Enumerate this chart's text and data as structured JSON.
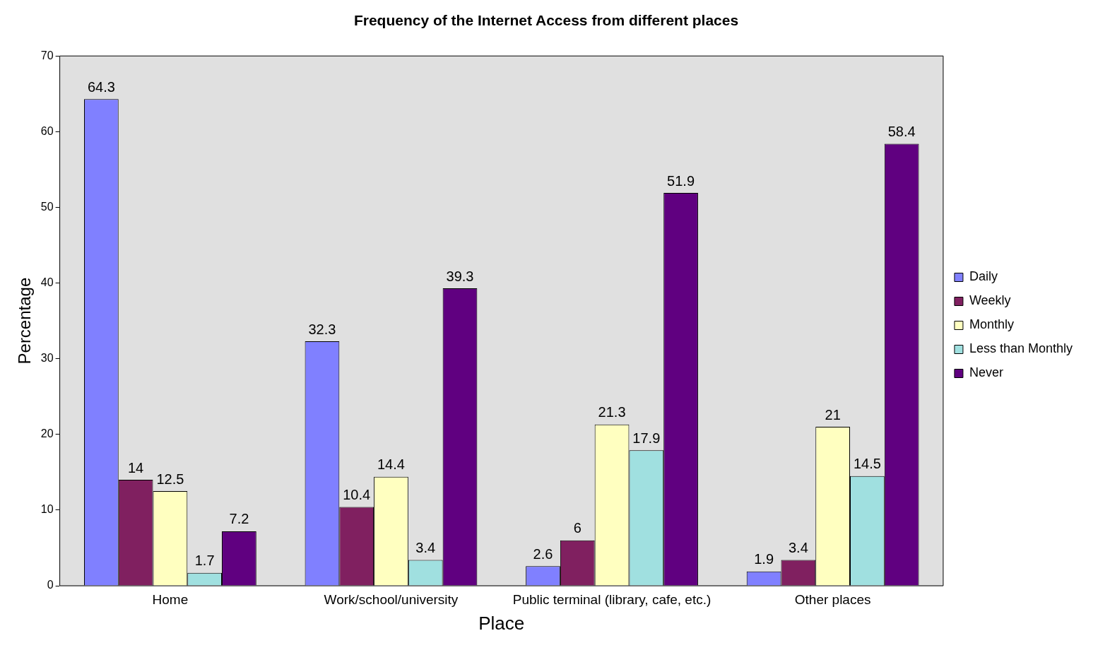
{
  "chart_data": {
    "type": "bar",
    "title": "Frequency of the Internet Access from different places",
    "xlabel": "Place",
    "ylabel": "Percentage",
    "categories": [
      "Home",
      "Work/school/university",
      "Public terminal (library, cafe, etc.)",
      "Other places"
    ],
    "series": [
      {
        "name": "Daily",
        "color": "#8080ff",
        "values": [
          64.3,
          32.3,
          2.6,
          1.9
        ]
      },
      {
        "name": "Weekly",
        "color": "#802060",
        "values": [
          14,
          10.4,
          6,
          3.4
        ]
      },
      {
        "name": "Monthly",
        "color": "#ffffc0",
        "values": [
          12.5,
          14.4,
          21.3,
          21
        ]
      },
      {
        "name": "Less than Monthly",
        "color": "#a0e0e0",
        "values": [
          1.7,
          3.4,
          17.9,
          14.5
        ]
      },
      {
        "name": "Never",
        "color": "#600080",
        "values": [
          7.2,
          39.3,
          51.9,
          58.4
        ]
      }
    ],
    "ylim": [
      0,
      70
    ],
    "yticks": [
      0,
      10,
      20,
      30,
      40,
      50,
      60,
      70
    ],
    "grid": false,
    "legend": "right",
    "data_labels": true
  }
}
